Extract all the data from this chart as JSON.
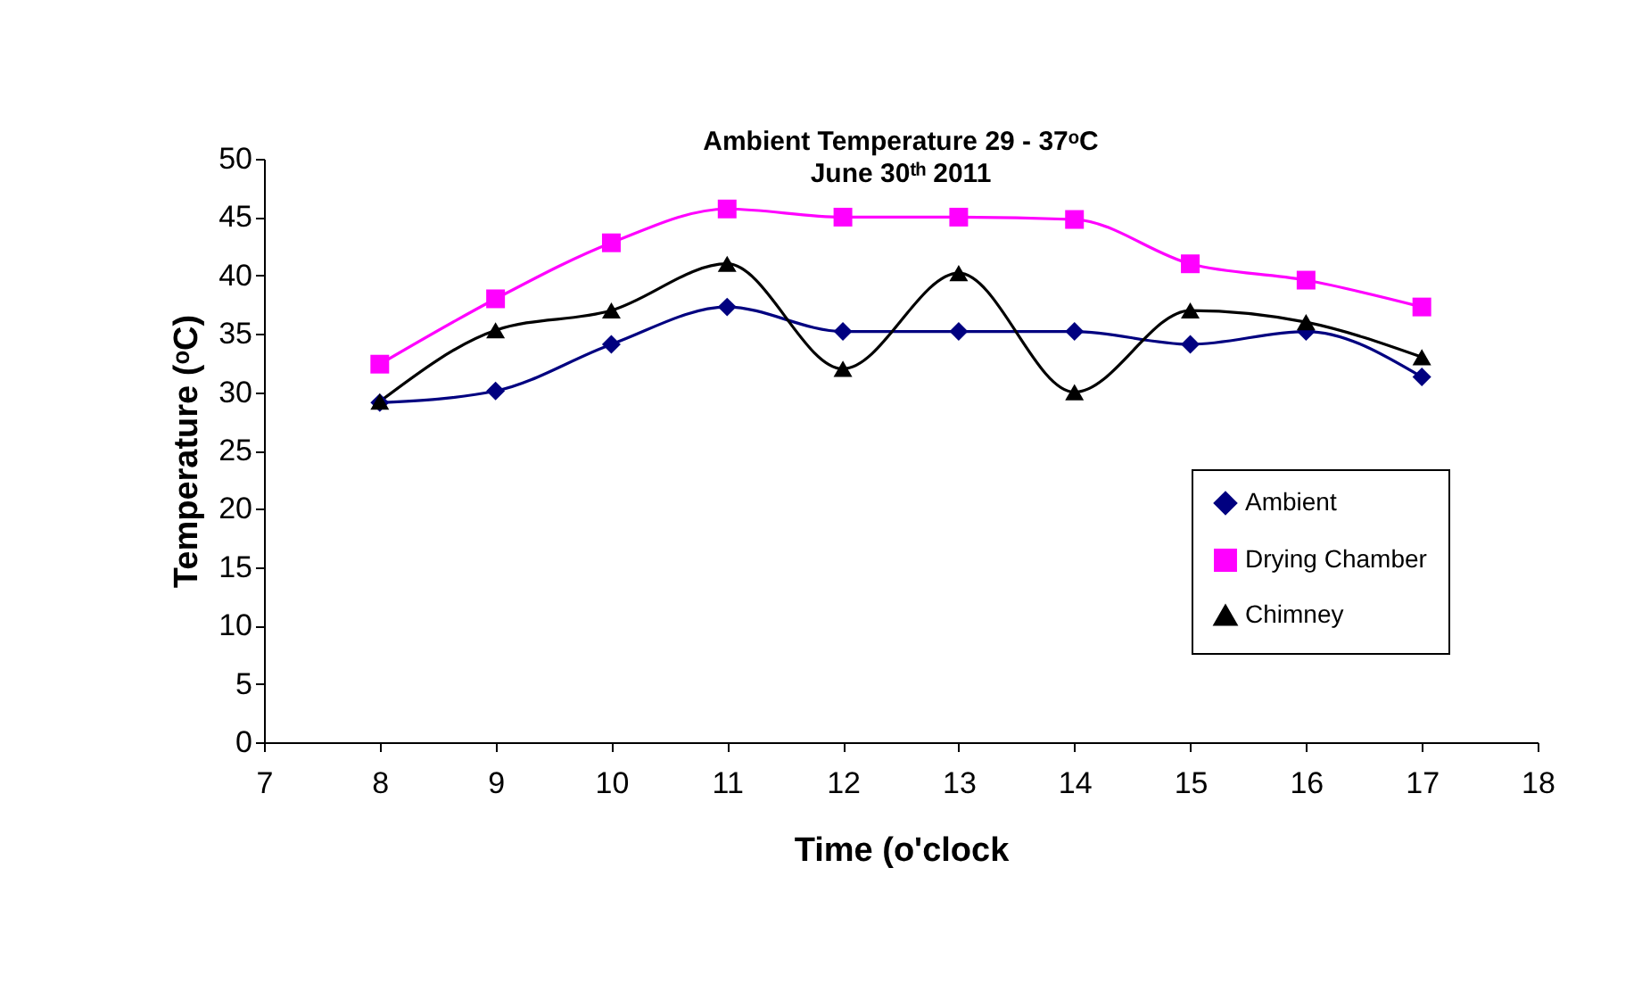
{
  "chart_data": {
    "type": "line",
    "title": "Ambient Temperature 29 - 37ᵒC",
    "subtitle": "June 30ᵗʰ 2011",
    "xlabel": "Time (o'clock",
    "ylabel": "Temperature (ᵒC)",
    "x": [
      8,
      9,
      10,
      11,
      12,
      13,
      14,
      15,
      16,
      17
    ],
    "series": [
      {
        "name": "Ambient",
        "color": "#000080",
        "marker": "diamond",
        "values": [
          29.1,
          30.1,
          34.1,
          37.3,
          35.2,
          35.2,
          35.2,
          34.1,
          35.2,
          31.3
        ]
      },
      {
        "name": "Drying Chamber",
        "color": "#ff00ff",
        "marker": "square",
        "values": [
          32.4,
          38,
          42.8,
          45.7,
          45,
          45,
          44.8,
          41,
          39.6,
          37.3
        ]
      },
      {
        "name": "Chimney",
        "color": "#000000",
        "marker": "triangle",
        "values": [
          29.2,
          35.3,
          37,
          41,
          32,
          40.2,
          30,
          37,
          36,
          33
        ]
      }
    ],
    "xlim": [
      7,
      18
    ],
    "xticks": [
      7,
      8,
      9,
      10,
      11,
      12,
      13,
      14,
      15,
      16,
      17,
      18
    ],
    "ylim": [
      0,
      50
    ],
    "yticks": [
      0,
      5,
      10,
      15,
      20,
      25,
      30,
      35,
      40,
      45,
      50
    ],
    "grid": false,
    "legend": "bottom right",
    "line_style": "solid"
  }
}
